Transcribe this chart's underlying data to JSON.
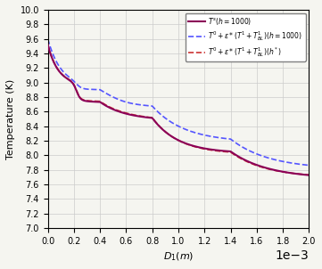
{
  "title": "",
  "xlabel": "$D_1(m)$",
  "ylabel": "Temperature (K)",
  "xlim": [
    0,
    0.002
  ],
  "ylim": [
    7,
    10
  ],
  "yticks": [
    7,
    7.2,
    7.4,
    7.6,
    7.8,
    8,
    8.2,
    8.4,
    8.6,
    8.8,
    9,
    9.2,
    9.4,
    9.6,
    9.8,
    10
  ],
  "legend": [
    {
      "label": "$T^s(h=1000)$",
      "color": "#8B0057",
      "linestyle": "-",
      "linewidth": 1.5
    },
    {
      "label": "$T^0 + \\epsilon*(T^1+T^1_{BL})(h=1000)$",
      "color": "#5555FF",
      "linestyle": "--",
      "linewidth": 1.2
    },
    {
      "label": "$T^0 + \\epsilon*(T^1+T^1_{BL})(h^*)$",
      "color": "#CC3333",
      "linestyle": "--",
      "linewidth": 1.2
    }
  ],
  "grid_color": "#cccccc",
  "background_color": "#f5f5f0"
}
